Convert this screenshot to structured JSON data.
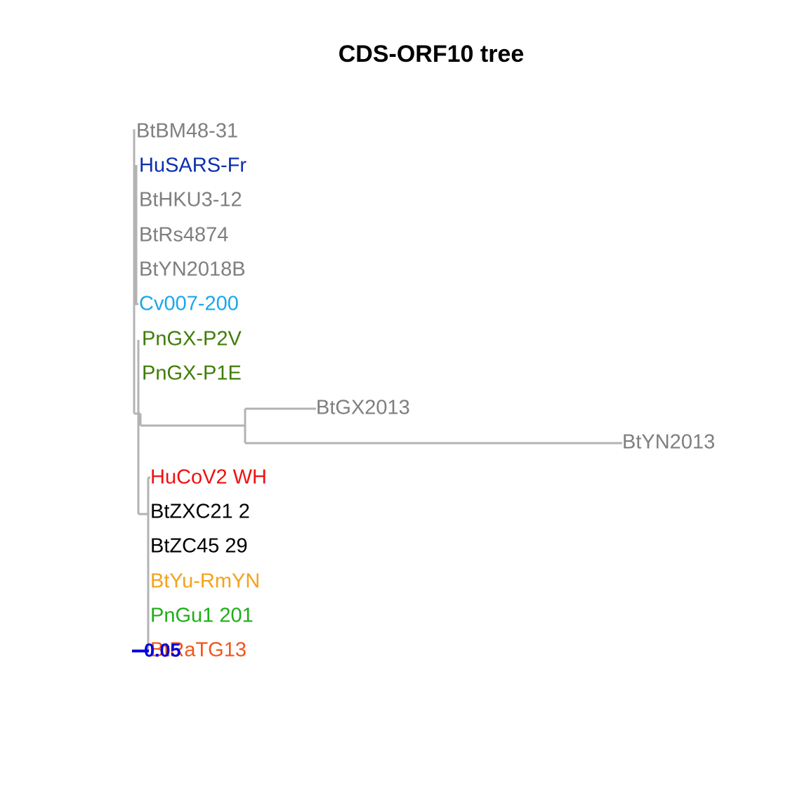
{
  "title": "CDS-ORF10 tree",
  "colors": {
    "branch": "#b3b3b3",
    "grey": "#7f7f7f",
    "navy": "#0a2fb0",
    "sky": "#1aa7ec",
    "olive": "#3f7d06",
    "red": "#ee1111",
    "black": "#000000",
    "orange": "#f4a21c",
    "green": "#1fae17",
    "redorange": "#f2551b",
    "scale": "#0000dd"
  },
  "tips": [
    {
      "label": "BtBM48-31",
      "color": "grey"
    },
    {
      "label": "HuSARS-Fr",
      "color": "navy"
    },
    {
      "label": "BtHKU3-12",
      "color": "grey"
    },
    {
      "label": "BtRs4874",
      "color": "grey"
    },
    {
      "label": "BtYN2018B",
      "color": "grey"
    },
    {
      "label": "Cv007-200",
      "color": "sky"
    },
    {
      "label": "PnGX-P2V",
      "color": "olive"
    },
    {
      "label": "PnGX-P1E",
      "color": "olive"
    },
    {
      "label": "BtGX2013",
      "color": "grey"
    },
    {
      "label": "BtYN2013",
      "color": "grey"
    },
    {
      "label": "HuCoV2 WH",
      "color": "red"
    },
    {
      "label": "BtZXC21 2",
      "color": "black"
    },
    {
      "label": "BtZC45 29",
      "color": "black"
    },
    {
      "label": "BtYu-RmYN",
      "color": "orange"
    },
    {
      "label": "PnGu1 201",
      "color": "green"
    },
    {
      "label": "BtRaTG13",
      "color": "redorange"
    }
  ],
  "scale_bar": {
    "label": "0.05"
  }
}
